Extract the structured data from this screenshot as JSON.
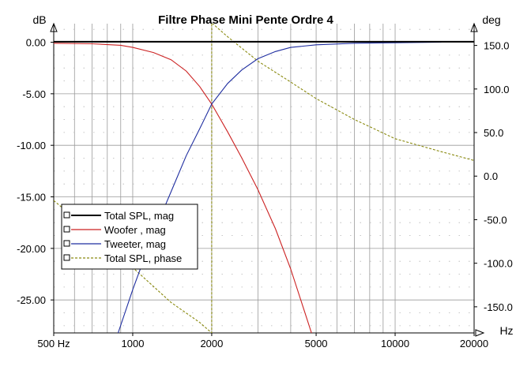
{
  "chart_data": {
    "type": "line",
    "title": "Filtre Phase Mini Pente Ordre 4",
    "left_unit": "dB",
    "right_unit": "deg",
    "x_unit": "Hz",
    "x_scale": "log",
    "xlim": [
      500,
      20000
    ],
    "ylim_left": [
      -28.2,
      1.8
    ],
    "ylim_right": [
      -180,
      175
    ],
    "x_ticks": [
      {
        "value": 500,
        "label": "500 Hz"
      },
      {
        "value": 1000,
        "label": "1000"
      },
      {
        "value": 2000,
        "label": "2000"
      },
      {
        "value": 5000,
        "label": "5000"
      },
      {
        "value": 10000,
        "label": "10000"
      },
      {
        "value": 20000,
        "label": "20000"
      }
    ],
    "y_left_ticks": [
      {
        "value": 0,
        "label": "0.00"
      },
      {
        "value": -5,
        "label": "-5.00"
      },
      {
        "value": -10,
        "label": "-10.00"
      },
      {
        "value": -15,
        "label": "-15.00"
      },
      {
        "value": -20,
        "label": "-20.00"
      },
      {
        "value": -25,
        "label": "-25.00"
      }
    ],
    "y_right_ticks": [
      {
        "value": 150,
        "label": "150.0"
      },
      {
        "value": 100,
        "label": "100.0"
      },
      {
        "value": 50,
        "label": "50.0"
      },
      {
        "value": 0,
        "label": "0.0"
      },
      {
        "value": -50,
        "label": "-50.0"
      },
      {
        "value": -100,
        "label": "-100.0"
      },
      {
        "value": -150,
        "label": "-150.0"
      }
    ],
    "legend_position": "lower-left",
    "grid": true,
    "series": [
      {
        "name": "Total SPL, mag",
        "axis": "left",
        "color": "#000000",
        "style": "solid",
        "points": [
          [
            500,
            0.05
          ],
          [
            1000,
            0.05
          ],
          [
            2000,
            0.05
          ],
          [
            5000,
            0.05
          ],
          [
            10000,
            0.05
          ],
          [
            20000,
            0.05
          ]
        ]
      },
      {
        "name": "Woofer , mag",
        "axis": "left",
        "color": "#cc2222",
        "style": "solid",
        "points": [
          [
            500,
            -0.1
          ],
          [
            700,
            -0.15
          ],
          [
            900,
            -0.3
          ],
          [
            1000,
            -0.5
          ],
          [
            1200,
            -1.0
          ],
          [
            1400,
            -1.7
          ],
          [
            1600,
            -2.8
          ],
          [
            1800,
            -4.3
          ],
          [
            2000,
            -6.0
          ],
          [
            2300,
            -8.7
          ],
          [
            2600,
            -11.2
          ],
          [
            3000,
            -14.3
          ],
          [
            3500,
            -18.1
          ],
          [
            4000,
            -22.0
          ],
          [
            4500,
            -26.0
          ],
          [
            4800,
            -28.2
          ]
        ]
      },
      {
        "name": "Tweeter, mag",
        "axis": "left",
        "color": "#1f2ea0",
        "style": "solid",
        "points": [
          [
            880,
            -28.2
          ],
          [
            1000,
            -24.0
          ],
          [
            1200,
            -18.5
          ],
          [
            1400,
            -14.5
          ],
          [
            1600,
            -11.0
          ],
          [
            1800,
            -8.4
          ],
          [
            2000,
            -6.0
          ],
          [
            2300,
            -4.0
          ],
          [
            2600,
            -2.7
          ],
          [
            3000,
            -1.6
          ],
          [
            3500,
            -0.9
          ],
          [
            4000,
            -0.5
          ],
          [
            5000,
            -0.25
          ],
          [
            7000,
            -0.1
          ],
          [
            10000,
            -0.05
          ],
          [
            15000,
            0.0
          ]
        ]
      },
      {
        "name": "Total SPL, phase",
        "axis": "right",
        "color": "#8a8a10",
        "style": "dashed",
        "points": [
          [
            500,
            -28
          ],
          [
            700,
            -65
          ],
          [
            1000,
            -105
          ],
          [
            1400,
            -145
          ],
          [
            1800,
            -168
          ],
          [
            2000,
            -180
          ],
          [
            2000,
            176
          ],
          [
            2300,
            160
          ],
          [
            3000,
            132
          ],
          [
            4000,
            108
          ],
          [
            5000,
            89
          ],
          [
            7000,
            65
          ],
          [
            10000,
            43
          ],
          [
            15000,
            28
          ],
          [
            20000,
            18
          ]
        ]
      }
    ]
  }
}
